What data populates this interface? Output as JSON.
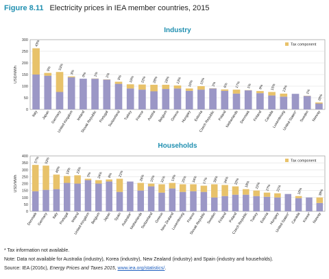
{
  "figure": {
    "number": "Figure 8.11",
    "title": "Electricity prices in IEA member countries, 2015"
  },
  "colors": {
    "base": "#9b97c6",
    "tax": "#e8c26a",
    "title": "#1f8fb0",
    "grid": "#d9d9d9"
  },
  "chart_data": [
    {
      "type": "bar",
      "title": "Industry",
      "ylabel": "USD/MWh",
      "ylim": [
        0,
        300
      ],
      "yticks": [
        0,
        50,
        100,
        150,
        200,
        250,
        300
      ],
      "legend": {
        "label": "Tax component",
        "placement": "top-right"
      },
      "grid": true,
      "stacked": true,
      "categories": [
        "Italy",
        "Japan",
        "Germany",
        "United Kingdom",
        "Ireland",
        "Slovak Republic",
        "Portugal",
        "Switzerland",
        "Turkey",
        "France",
        "Austria",
        "Belgium",
        "Greece",
        "Hungary",
        "Estonia",
        "Czech Republic",
        "Poland",
        "Netherlands",
        "Denmark",
        "Finland",
        "Canada",
        "Luxembourg",
        "United States*",
        "Sweden",
        "Norway"
      ],
      "series": [
        {
          "name": "",
          "values": [
            150,
            145,
            75,
            138,
            132,
            132,
            128,
            110,
            90,
            85,
            78,
            88,
            90,
            80,
            85,
            90,
            80,
            68,
            82,
            70,
            60,
            55,
            67,
            58,
            25
          ]
        },
        {
          "name": "Tax component",
          "values": [
            113,
            12,
            86,
            4,
            0,
            1,
            1,
            9,
            18,
            22,
            28,
            18,
            13,
            10,
            15,
            1,
            6,
            17,
            1,
            9,
            15,
            13,
            0,
            1,
            5
          ]
        }
      ],
      "data_labels": [
        "43%",
        "9%",
        "53%",
        "3%",
        "0%",
        "1%",
        "1%",
        "9%",
        "19%",
        "22%",
        "28%",
        "18%",
        "13%",
        "10%",
        "15%",
        "1%",
        "6%",
        "17%",
        "1%",
        "9%",
        "15%",
        "13%",
        "",
        "1%",
        "20%"
      ]
    },
    {
      "type": "bar",
      "title": "Households",
      "ylabel": "USD/MWh",
      "ylim": [
        0,
        400
      ],
      "yticks": [
        0,
        50,
        100,
        150,
        200,
        250,
        300,
        350,
        400
      ],
      "legend": {
        "label": "Tax component",
        "placement": "top-right"
      },
      "grid": true,
      "stacked": true,
      "categories": [
        "Denmark",
        "Germany",
        "Italy",
        "Portugal",
        "Ireland",
        "United Kingdom",
        "Belgium",
        "Japan",
        "Spain",
        "Australia*",
        "Netherlands",
        "Switzerland",
        "Greece",
        "New Zealand",
        "Luxembourg",
        "France",
        "Slovak Republic",
        "Sweden",
        "Finland",
        "Poland",
        "Czech Republic",
        "Turkey",
        "Estonia",
        "Hungary",
        "United States*",
        "Canada",
        "Korea*",
        "Norway"
      ],
      "series": [
        {
          "name": "",
          "values": [
            145,
            155,
            160,
            205,
            200,
            225,
            200,
            215,
            140,
            215,
            150,
            180,
            135,
            165,
            140,
            145,
            140,
            100,
            110,
            120,
            120,
            110,
            105,
            100,
            125,
            95,
            100,
            60
          ]
        },
        {
          "name": "Tax component",
          "values": [
            190,
            175,
            105,
            50,
            60,
            10,
            25,
            15,
            95,
            0,
            55,
            20,
            60,
            40,
            55,
            50,
            45,
            95,
            80,
            60,
            40,
            40,
            30,
            30,
            0,
            15,
            0,
            40
          ]
        }
      ],
      "data_labels": [
        "57%",
        "53%",
        "40%",
        "19%",
        "23%",
        "5%",
        "24%",
        "8%",
        "21%",
        "",
        "26%",
        "15%",
        "31%",
        "13%",
        "25%",
        "34%",
        "17%",
        "39%",
        "34%",
        "22%",
        "18%",
        "22%",
        "27%",
        "21%",
        "",
        "10%",
        "",
        "38%"
      ]
    }
  ],
  "notes": {
    "footnote": "* Tax information not available.",
    "note": "Note: Data not available for Australia (industry), Korea (industry), New Zealand (industry) and Spain (industry and households).",
    "source_prefix": "Source: IEA (2016c), ",
    "source_title": "Energy Prices and Taxes 2015",
    "source_sep": ", ",
    "source_link": "www.iea.org/statistics/",
    "source_end": "."
  }
}
